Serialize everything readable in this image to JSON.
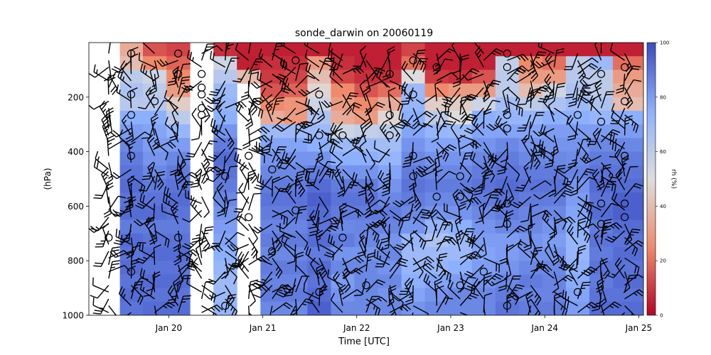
{
  "chart_data": {
    "type": "heatmap",
    "title": "sonde_darwin on 20060119",
    "xlabel": "Time [UTC]",
    "ylabel": "(hPa)",
    "x_ticks": [
      "Jan 20",
      "Jan 21",
      "Jan 22",
      "Jan 23",
      "Jan 24",
      "Jan 25"
    ],
    "y_ticks": [
      200,
      400,
      600,
      800,
      1000
    ],
    "ylim": [
      1000,
      0
    ],
    "y_inverted": true,
    "time_range_days": [
      19.15,
      25.05
    ],
    "colorbar": {
      "label": "rh (%)",
      "ticks": [
        0,
        20,
        40,
        60,
        80,
        100
      ],
      "range": [
        0,
        100
      ],
      "colormap": "coolwarm",
      "low_color": "#b40426",
      "mid_color": "#dddddd",
      "high_color": "#3b4cc0"
    },
    "pressure_levels": [
      25,
      75,
      125,
      175,
      225,
      275,
      325,
      375,
      425,
      475,
      525,
      575,
      625,
      675,
      725,
      775,
      825,
      875,
      925,
      975
    ],
    "columns": [
      {
        "t": 19.36,
        "rh": [
          null,
          null,
          null,
          null,
          null,
          null,
          null,
          null,
          null,
          null,
          null,
          null,
          null,
          null,
          null,
          null,
          null,
          null,
          null,
          null
        ]
      },
      {
        "t": 19.6,
        "rh": [
          35,
          40,
          60,
          65,
          62,
          75,
          80,
          85,
          88,
          90,
          92,
          90,
          92,
          88,
          92,
          90,
          92,
          90,
          92,
          90
        ]
      },
      {
        "t": 19.85,
        "rh": [
          15,
          25,
          55,
          60,
          62,
          75,
          78,
          80,
          82,
          85,
          88,
          90,
          92,
          88,
          90,
          92,
          90,
          92,
          90,
          92
        ]
      },
      {
        "t": 20.1,
        "rh": [
          12,
          18,
          25,
          30,
          45,
          60,
          72,
          80,
          85,
          88,
          90,
          92,
          90,
          88,
          90,
          92,
          90,
          92,
          90,
          92
        ]
      },
      {
        "t": 20.35,
        "rh": [
          null,
          null,
          null,
          null,
          null,
          null,
          null,
          null,
          null,
          null,
          null,
          null,
          null,
          null,
          null,
          null,
          null,
          null,
          null,
          null
        ]
      },
      {
        "t": 20.6,
        "rh": [
          8,
          55,
          62,
          70,
          72,
          75,
          82,
          88,
          92,
          90,
          88,
          85,
          82,
          80,
          78,
          75,
          72,
          70,
          70,
          72
        ]
      },
      {
        "t": 20.85,
        "rh": [
          5,
          5,
          40,
          null,
          null,
          null,
          null,
          null,
          null,
          null,
          null,
          null,
          null,
          null,
          null,
          null,
          null,
          null,
          null,
          null
        ]
      },
      {
        "t": 21.1,
        "rh": [
          5,
          8,
          10,
          15,
          25,
          35,
          70,
          78,
          82,
          85,
          88,
          90,
          88,
          86,
          88,
          85,
          88,
          86,
          88,
          85
        ]
      },
      {
        "t": 21.35,
        "rh": [
          5,
          8,
          12,
          18,
          28,
          30,
          70,
          78,
          82,
          85,
          88,
          90,
          88,
          86,
          88,
          85,
          88,
          86,
          88,
          85
        ]
      },
      {
        "t": 21.6,
        "rh": [
          5,
          30,
          40,
          48,
          55,
          65,
          70,
          75,
          82,
          88,
          92,
          95,
          92,
          90,
          92,
          88,
          92,
          90,
          92,
          95
        ]
      },
      {
        "t": 21.85,
        "rh": [
          5,
          8,
          12,
          25,
          30,
          35,
          55,
          70,
          75,
          82,
          88,
          90,
          88,
          85,
          88,
          82,
          85,
          80,
          82,
          85
        ]
      },
      {
        "t": 22.1,
        "rh": [
          5,
          5,
          8,
          15,
          25,
          30,
          58,
          70,
          75,
          82,
          88,
          90,
          88,
          86,
          85,
          82,
          85,
          85,
          85,
          85
        ]
      },
      {
        "t": 22.35,
        "rh": [
          5,
          5,
          8,
          20,
          35,
          48,
          60,
          68,
          72,
          78,
          82,
          85,
          88,
          86,
          82,
          85,
          82,
          85,
          82,
          85
        ]
      },
      {
        "t": 22.6,
        "rh": [
          12,
          20,
          50,
          70,
          72,
          75,
          78,
          82,
          85,
          88,
          90,
          88,
          85,
          82,
          72,
          70,
          72,
          75,
          78,
          82
        ]
      },
      {
        "t": 22.85,
        "rh": [
          5,
          5,
          10,
          25,
          45,
          60,
          72,
          78,
          82,
          85,
          88,
          85,
          82,
          72,
          65,
          70,
          72,
          78,
          82,
          85
        ]
      },
      {
        "t": 23.1,
        "rh": [
          5,
          5,
          8,
          30,
          45,
          50,
          70,
          78,
          82,
          85,
          88,
          85,
          82,
          75,
          70,
          70,
          75,
          80,
          85,
          85
        ]
      },
      {
        "t": 23.35,
        "rh": [
          5,
          5,
          15,
          30,
          55,
          75,
          78,
          82,
          85,
          88,
          90,
          88,
          85,
          82,
          80,
          78,
          80,
          82,
          85,
          85
        ]
      },
      {
        "t": 23.6,
        "rh": [
          5,
          58,
          60,
          60,
          68,
          72,
          78,
          85,
          88,
          90,
          92,
          90,
          88,
          85,
          80,
          80,
          82,
          85,
          88,
          90
        ]
      },
      {
        "t": 23.85,
        "rh": [
          5,
          25,
          30,
          40,
          60,
          72,
          78,
          82,
          85,
          88,
          90,
          88,
          86,
          85,
          82,
          82,
          85,
          88,
          86,
          88
        ]
      },
      {
        "t": 24.1,
        "rh": [
          5,
          20,
          30,
          55,
          65,
          75,
          80,
          82,
          85,
          88,
          90,
          88,
          85,
          82,
          80,
          82,
          85,
          86,
          86,
          88
        ]
      },
      {
        "t": 24.35,
        "rh": [
          5,
          60,
          62,
          65,
          70,
          75,
          80,
          82,
          84,
          86,
          82,
          80,
          78,
          75,
          72,
          72,
          74,
          76,
          78,
          80
        ]
      },
      {
        "t": 24.6,
        "rh": [
          5,
          70,
          60,
          60,
          65,
          72,
          80,
          85,
          88,
          90,
          92,
          90,
          92,
          88,
          90,
          88,
          90,
          88,
          90,
          92
        ]
      },
      {
        "t": 24.85,
        "rh": [
          5,
          20,
          30,
          35,
          40,
          75,
          80,
          85,
          88,
          90,
          92,
          95,
          95,
          92,
          90,
          92,
          90,
          92,
          90,
          92
        ]
      }
    ]
  }
}
